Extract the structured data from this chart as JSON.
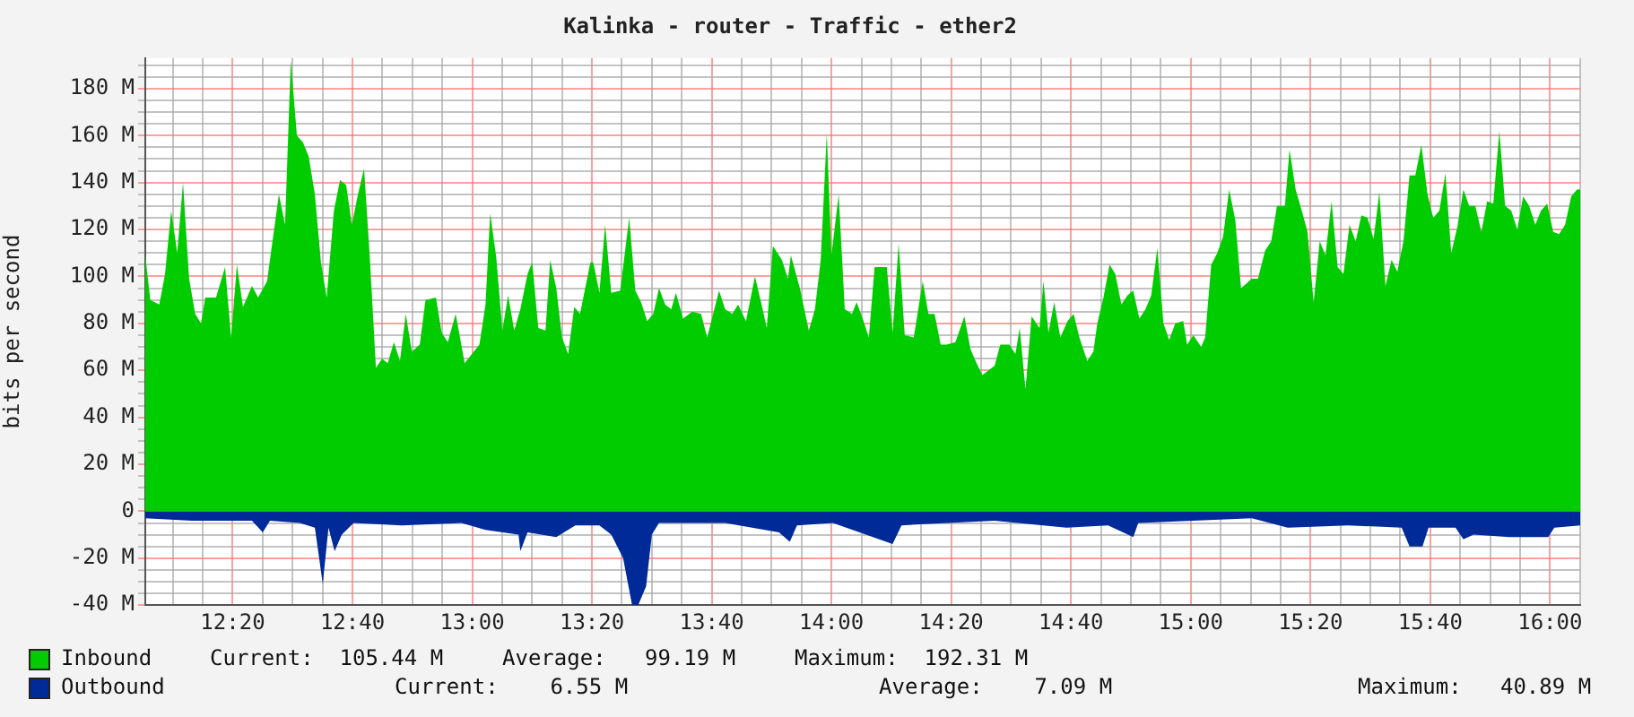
{
  "chart_data": {
    "type": "area",
    "title": "Kalinka - router - Traffic - ether2",
    "ylabel": "bits per second",
    "xlim": [
      12.09,
      16.084
    ],
    "ylim": [
      -40,
      193
    ],
    "xticks": [
      {
        "value": 12.1667,
        "label": null
      },
      {
        "value": 12.25,
        "label": null
      },
      {
        "value": 12.3333,
        "label": "12:20"
      },
      {
        "value": 12.4167,
        "label": null
      },
      {
        "value": 12.5,
        "label": null
      },
      {
        "value": 12.5833,
        "label": null
      },
      {
        "value": 12.6667,
        "label": "12:40"
      },
      {
        "value": 12.75,
        "label": null
      },
      {
        "value": 12.8333,
        "label": null
      },
      {
        "value": 12.9167,
        "label": null
      },
      {
        "value": 13,
        "label": "13:00"
      },
      {
        "value": 13.0833,
        "label": null
      },
      {
        "value": 13.1667,
        "label": null
      },
      {
        "value": 13.25,
        "label": null
      },
      {
        "value": 13.3333,
        "label": "13:20"
      },
      {
        "value": 13.4167,
        "label": null
      },
      {
        "value": 13.5,
        "label": null
      },
      {
        "value": 13.5833,
        "label": null
      },
      {
        "value": 13.6667,
        "label": "13:40"
      },
      {
        "value": 13.75,
        "label": null
      },
      {
        "value": 13.8333,
        "label": null
      },
      {
        "value": 13.9167,
        "label": null
      },
      {
        "value": 14,
        "label": "14:00"
      },
      {
        "value": 14.0833,
        "label": null
      },
      {
        "value": 14.1667,
        "label": null
      },
      {
        "value": 14.25,
        "label": null
      },
      {
        "value": 14.3333,
        "label": "14:20"
      },
      {
        "value": 14.4167,
        "label": null
      },
      {
        "value": 14.5,
        "label": null
      },
      {
        "value": 14.5833,
        "label": null
      },
      {
        "value": 14.6667,
        "label": "14:40"
      },
      {
        "value": 14.75,
        "label": null
      },
      {
        "value": 14.8333,
        "label": null
      },
      {
        "value": 14.9167,
        "label": null
      },
      {
        "value": 15,
        "label": "15:00"
      },
      {
        "value": 15.0833,
        "label": null
      },
      {
        "value": 15.1667,
        "label": null
      },
      {
        "value": 15.25,
        "label": null
      },
      {
        "value": 15.3333,
        "label": "15:20"
      },
      {
        "value": 15.4167,
        "label": null
      },
      {
        "value": 15.5,
        "label": null
      },
      {
        "value": 15.5833,
        "label": null
      },
      {
        "value": 15.6667,
        "label": "15:40"
      },
      {
        "value": 15.75,
        "label": null
      },
      {
        "value": 15.8333,
        "label": null
      },
      {
        "value": 15.9167,
        "label": null
      },
      {
        "value": 16,
        "label": "16:00"
      },
      {
        "value": 16.0833,
        "label": null
      }
    ],
    "yticks": [
      {
        "value": -40,
        "label": "-40 M"
      },
      {
        "value": -35,
        "label": null
      },
      {
        "value": -30,
        "label": null
      },
      {
        "value": -25,
        "label": null
      },
      {
        "value": -20,
        "label": "-20 M"
      },
      {
        "value": -15,
        "label": null
      },
      {
        "value": -10,
        "label": null
      },
      {
        "value": -5,
        "label": null
      },
      0,
      {
        "value": 5,
        "label": null
      },
      {
        "value": 10,
        "label": null
      },
      {
        "value": 15,
        "label": null
      },
      {
        "value": 20,
        "label": "20 M"
      },
      {
        "value": 25,
        "label": null
      },
      {
        "value": 30,
        "label": null
      },
      {
        "value": 35,
        "label": null
      },
      {
        "value": 40,
        "label": "40 M"
      },
      {
        "value": 45,
        "label": null
      },
      {
        "value": 50,
        "label": null
      },
      {
        "value": 55,
        "label": null
      },
      {
        "value": 60,
        "label": "60 M"
      },
      {
        "value": 65,
        "label": null
      },
      {
        "value": 70,
        "label": null
      },
      {
        "value": 75,
        "label": null
      },
      {
        "value": 80,
        "label": "80 M"
      },
      {
        "value": 85,
        "label": null
      },
      {
        "value": 90,
        "label": null
      },
      {
        "value": 95,
        "label": null
      },
      {
        "value": 100,
        "label": "100 M"
      },
      {
        "value": 105,
        "label": null
      },
      {
        "value": 110,
        "label": null
      },
      {
        "value": 115,
        "label": null
      },
      {
        "value": 120,
        "label": "120 M"
      },
      {
        "value": 125,
        "label": null
      },
      {
        "value": 130,
        "label": null
      },
      {
        "value": 135,
        "label": null
      },
      {
        "value": 140,
        "label": "140 M"
      },
      {
        "value": 145,
        "label": null
      },
      {
        "value": 150,
        "label": null
      },
      {
        "value": 155,
        "label": null
      },
      {
        "value": 160,
        "label": "160 M"
      },
      {
        "value": 165,
        "label": null
      },
      {
        "value": 170,
        "label": null
      },
      {
        "value": 175,
        "label": null
      },
      {
        "value": 180,
        "label": "180 M"
      },
      {
        "value": 185,
        "label": null
      },
      {
        "value": 190,
        "label": null
      }
    ],
    "grid": true,
    "legend": "bottom",
    "series": [
      {
        "name": "Inbound",
        "color": "#00cc00",
        "x": [
          12.09,
          12.104,
          12.129,
          12.145,
          12.162,
          12.179,
          12.195,
          12.212,
          12.229,
          12.245,
          12.257,
          12.287,
          12.312,
          12.329,
          12.345,
          12.362,
          12.387,
          12.404,
          12.429,
          12.445,
          12.462,
          12.479,
          12.495,
          12.512,
          12.529,
          12.545,
          12.562,
          12.579,
          12.595,
          12.615,
          12.632,
          12.649,
          12.665,
          12.682,
          12.699,
          12.715,
          12.732,
          12.749,
          12.765,
          12.782,
          12.799,
          12.815,
          12.832,
          12.854,
          12.87,
          12.899,
          12.915,
          12.932,
          12.954,
          12.979,
          12.999,
          13.02,
          13.037,
          13.05,
          13.067,
          13.084,
          13.1,
          13.117,
          13.134,
          13.154,
          13.167,
          13.184,
          13.204,
          13.217,
          13.234,
          13.25,
          13.267,
          13.284,
          13.3,
          13.329,
          13.337,
          13.354,
          13.37,
          13.387,
          13.412,
          13.437,
          13.454,
          13.47,
          13.487,
          13.504,
          13.52,
          13.537,
          13.554,
          13.567,
          13.587,
          13.612,
          13.637,
          13.654,
          13.687,
          13.704,
          13.724,
          13.74,
          13.762,
          13.787,
          13.804,
          13.82,
          13.837,
          13.862,
          13.879,
          13.887,
          13.912,
          13.937,
          13.954,
          13.97,
          13.987,
          14,
          14.02,
          14.037,
          14.057,
          14.07,
          14.087,
          14.104,
          14.12,
          14.154,
          14.17,
          14.187,
          14.204,
          14.229,
          14.254,
          14.27,
          14.287,
          14.304,
          14.32,
          14.345,
          14.37,
          14.387,
          14.404,
          14.42,
          14.437,
          14.454,
          14.47,
          14.495,
          14.512,
          14.524,
          14.54,
          14.557,
          14.579,
          14.59,
          14.604,
          14.62,
          14.637,
          14.657,
          14.674,
          14.69,
          14.712,
          14.729,
          14.74,
          14.757,
          14.774,
          14.79,
          14.807,
          14.824,
          14.84,
          14.857,
          14.874,
          14.89,
          14.907,
          14.924,
          14.94,
          14.957,
          14.979,
          14.99,
          15.007,
          15.029,
          15.04,
          15.057,
          15.074,
          15.09,
          15.107,
          15.124,
          15.14,
          15.17,
          15.187,
          15.207,
          15.224,
          15.24,
          15.262,
          15.275,
          15.292,
          15.309,
          15.325,
          15.342,
          15.359,
          15.375,
          15.392,
          15.409,
          15.425,
          15.442,
          15.459,
          15.475,
          15.492,
          15.509,
          15.525,
          15.542,
          15.559,
          15.575,
          15.592,
          15.609,
          15.625,
          15.642,
          15.659,
          15.675,
          15.692,
          15.709,
          15.725,
          15.742,
          15.759,
          15.775,
          15.792,
          15.809,
          15.825,
          15.842,
          15.859,
          15.875,
          15.892,
          15.909,
          15.925,
          15.942,
          15.959,
          15.975,
          15.992,
          16.009,
          16.025,
          16.042,
          16.059,
          16.075,
          16.084
        ],
        "values": [
          109,
          90,
          88,
          101,
          128,
          110,
          140,
          99,
          84,
          80,
          91,
          91,
          104,
          74,
          105,
          87,
          96,
          91,
          98,
          116,
          135,
          122,
          192,
          160,
          157,
          151,
          135,
          106,
          91,
          128,
          141,
          139,
          122,
          135,
          146,
          108,
          61,
          65,
          63,
          72,
          64,
          84,
          68,
          71,
          90,
          91,
          76,
          72,
          84,
          63,
          67,
          71,
          88,
          127,
          108,
          77,
          92,
          77,
          86,
          101,
          106,
          78,
          77,
          107,
          95,
          74,
          67,
          87,
          84,
          106,
          106,
          93,
          122,
          93,
          94,
          125,
          94,
          89,
          81,
          84,
          95,
          88,
          86,
          93,
          82,
          85,
          84,
          74,
          94,
          86,
          84,
          88,
          81,
          100,
          89,
          78,
          113,
          107,
          99,
          109,
          95,
          77,
          86,
          107,
          161,
          109,
          135,
          86,
          84,
          89,
          82,
          74,
          104,
          104,
          76,
          114,
          75,
          74,
          98,
          84,
          84,
          71,
          71,
          72,
          83,
          69,
          63,
          58,
          60,
          62,
          71,
          71,
          67,
          78,
          52,
          83,
          78,
          98,
          76,
          89,
          74,
          81,
          84,
          74,
          64,
          68,
          80,
          91,
          105,
          101,
          88,
          92,
          94,
          82,
          86,
          92,
          112,
          80,
          73,
          80,
          81,
          71,
          75,
          70,
          74,
          105,
          110,
          117,
          137,
          124,
          95,
          99,
          99,
          111,
          115,
          130,
          130,
          154,
          137,
          128,
          119,
          89,
          115,
          109,
          132,
          104,
          101,
          122,
          115,
          126,
          125,
          116,
          136,
          96,
          107,
          102,
          115,
          143,
          143,
          156,
          135,
          125,
          128,
          144,
          110,
          121,
          137,
          130,
          130,
          119,
          132,
          131,
          162,
          130,
          128,
          120,
          134,
          130,
          122,
          128,
          131,
          119,
          118,
          122,
          134,
          137,
          137
        ]
      },
      {
        "name": "Outbound",
        "color": "#002a97",
        "x": [
          12.09,
          12.22,
          12.387,
          12.417,
          12.437,
          12.52,
          12.562,
          12.584,
          12.6,
          12.617,
          12.637,
          12.67,
          12.804,
          12.97,
          13.037,
          13.129,
          13.134,
          13.154,
          13.234,
          13.287,
          13.354,
          13.387,
          13.42,
          13.445,
          13.462,
          13.484,
          13.5,
          13.52,
          13.704,
          13.854,
          13.884,
          13.904,
          14.004,
          14.17,
          14.195,
          14.454,
          14.654,
          14.77,
          14.84,
          14.854,
          15.17,
          15.27,
          15.437,
          15.587,
          15.609,
          15.645,
          15.662,
          15.737,
          15.759,
          15.787,
          15.887,
          15.995,
          16.012,
          16.084
        ],
        "values": [
          -3,
          -4,
          -4,
          -9,
          -4,
          -5,
          -7,
          -31,
          -7,
          -17,
          -10,
          -5,
          -6,
          -5,
          -8,
          -10,
          -17,
          -9,
          -11,
          -6,
          -6,
          -10,
          -20,
          -40,
          -40,
          -32,
          -10,
          -5,
          -5,
          -9,
          -13,
          -6,
          -5,
          -14,
          -6,
          -4,
          -7,
          -6,
          -11,
          -5,
          -3,
          -7,
          -6,
          -7,
          -15,
          -15,
          -7,
          -7,
          -12,
          -10,
          -11,
          -11,
          -7,
          -6
        ]
      }
    ],
    "annotations": [
      "Current:  105.44 M",
      "Average:   99.19 M",
      "Maximum:  192.31 M",
      "Current:    6.55 M",
      "Average:    7.09 M",
      "Maximum:   40.89 M"
    ]
  }
}
